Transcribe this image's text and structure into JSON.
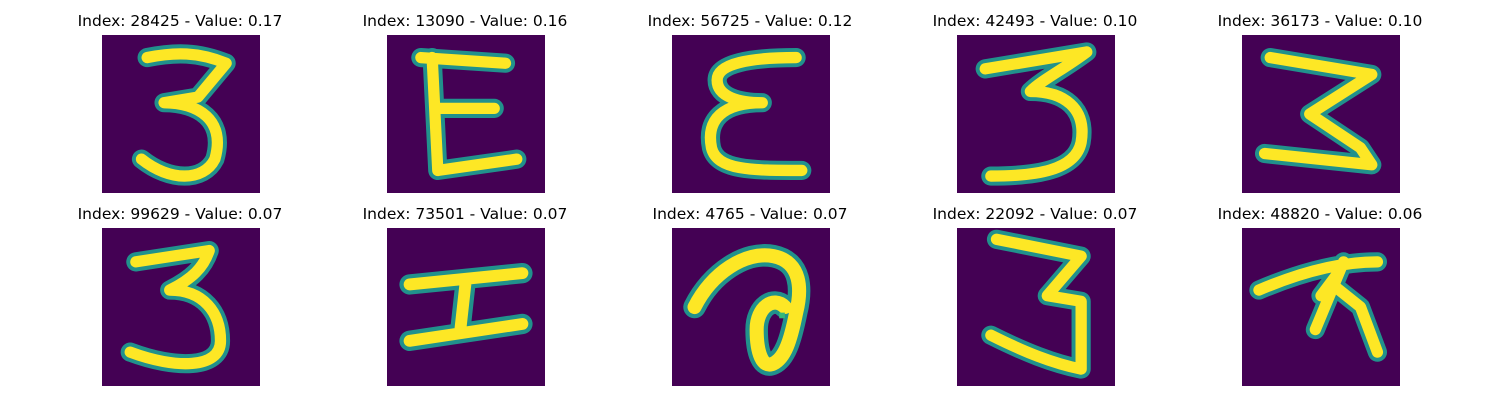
{
  "colors": {
    "background": "#440154",
    "stroke_edge": "#21918c",
    "stroke_core": "#fde725"
  },
  "panels": [
    {
      "title": "Index: 28425 - Value: 0.17",
      "glyph": "glyph-3a"
    },
    {
      "title": "Index: 13090 - Value: 0.16",
      "glyph": "glyph-e-block"
    },
    {
      "title": "Index: 56725 - Value: 0.12",
      "glyph": "glyph-epsilon"
    },
    {
      "title": "Index: 42493 - Value: 0.10",
      "glyph": "glyph-3-flat"
    },
    {
      "title": "Index: 36173 - Value: 0.10",
      "glyph": "glyph-3-zig"
    },
    {
      "title": "Index: 99629 - Value: 0.07",
      "glyph": "glyph-3-round"
    },
    {
      "title": "Index: 73501 - Value: 0.07",
      "glyph": "glyph-h-sideways"
    },
    {
      "title": "Index: 4765 - Value: 0.07",
      "glyph": "glyph-hook"
    },
    {
      "title": "Index: 22092 - Value: 0.07",
      "glyph": "glyph-3-tall"
    },
    {
      "title": "Index: 48820 - Value: 0.06",
      "glyph": "glyph-star"
    }
  ]
}
